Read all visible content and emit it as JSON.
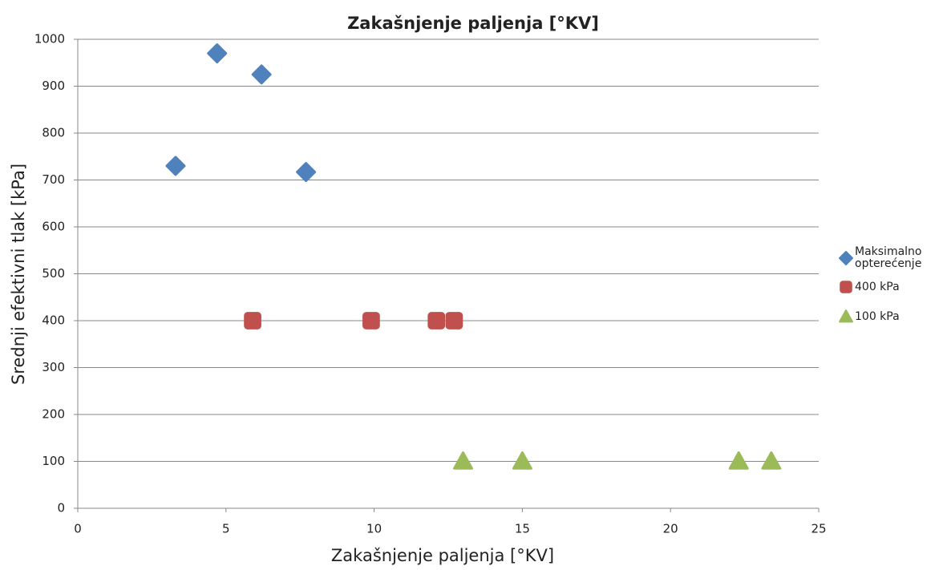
{
  "chart_data": {
    "type": "scatter",
    "title": "Zakašnjenje paljenja [°KV]",
    "x_label": "Zakašnjenje paljenja [°KV]",
    "y_label": "Srednji efektivni tlak [kPa]",
    "xlim": [
      0,
      25
    ],
    "xticks": [
      0,
      5,
      10,
      15,
      20,
      25
    ],
    "ylim": [
      0,
      1000
    ],
    "yticks": [
      0,
      100,
      200,
      300,
      400,
      500,
      600,
      700,
      800,
      900,
      1000
    ],
    "grid": true,
    "legend": "right",
    "series": [
      {
        "name": "Maksimalno opterećenje",
        "color": "#4f81bd",
        "marker": "diamond",
        "x": [
          3.3,
          4.7,
          6.2,
          7.7
        ],
        "y": [
          730,
          970,
          925,
          717
        ]
      },
      {
        "name": "400 kPa",
        "color": "#c0504d",
        "marker": "square",
        "x": [
          5.9,
          9.9,
          12.1,
          12.7
        ],
        "y": [
          400,
          400,
          400,
          400
        ]
      },
      {
        "name": "100 kPa",
        "color": "#9bbb59",
        "marker": "triangle",
        "x": [
          13.0,
          15.0,
          22.3,
          23.4
        ],
        "y": [
          100,
          100,
          100,
          100
        ]
      }
    ]
  }
}
